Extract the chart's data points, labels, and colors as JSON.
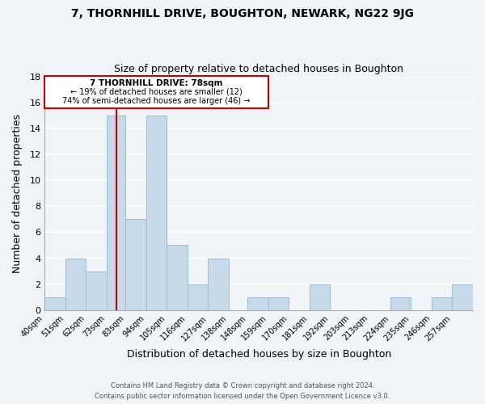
{
  "title": "7, THORNHILL DRIVE, BOUGHTON, NEWARK, NG22 9JG",
  "subtitle": "Size of property relative to detached houses in Boughton",
  "xlabel": "Distribution of detached houses by size in Boughton",
  "ylabel": "Number of detached properties",
  "bin_labels": [
    "40sqm",
    "51sqm",
    "62sqm",
    "73sqm",
    "83sqm",
    "94sqm",
    "105sqm",
    "116sqm",
    "127sqm",
    "138sqm",
    "148sqm",
    "159sqm",
    "170sqm",
    "181sqm",
    "192sqm",
    "203sqm",
    "213sqm",
    "224sqm",
    "235sqm",
    "246sqm",
    "257sqm"
  ],
  "bar_values": [
    1,
    4,
    3,
    15,
    7,
    15,
    5,
    2,
    4,
    0,
    1,
    1,
    0,
    2,
    0,
    0,
    0,
    1,
    0,
    1,
    2
  ],
  "bar_color": "#c8daea",
  "bar_edge_color": "#a0bcd0",
  "property_line_x": 78,
  "bin_edges": [
    40,
    51,
    62,
    73,
    83,
    94,
    105,
    116,
    127,
    138,
    148,
    159,
    170,
    181,
    192,
    203,
    213,
    224,
    235,
    246,
    257,
    268
  ],
  "annotation_title": "7 THORNHILL DRIVE: 78sqm",
  "annotation_line1": "← 19% of detached houses are smaller (12)",
  "annotation_line2": "74% of semi-detached houses are larger (46) →",
  "annotation_box_color": "#ffffff",
  "annotation_box_edge": "#cc0000",
  "property_line_color": "#cc0000",
  "ylim": [
    0,
    18
  ],
  "yticks": [
    0,
    2,
    4,
    6,
    8,
    10,
    12,
    14,
    16,
    18
  ],
  "footer_line1": "Contains HM Land Registry data © Crown copyright and database right 2024.",
  "footer_line2": "Contains public sector information licensed under the Open Government Licence v3.0.",
  "background_color": "#f0f4f8",
  "plot_background": "#f0f4f8",
  "grid_color": "#dce6ef"
}
